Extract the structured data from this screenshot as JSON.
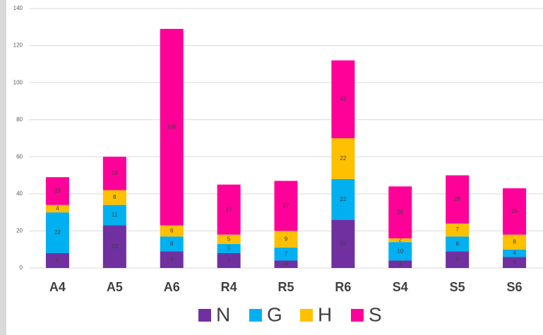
{
  "chart_data": {
    "type": "stacked_bar",
    "categories": [
      "A4",
      "A5",
      "A6",
      "R4",
      "R5",
      "R6",
      "S4",
      "S5",
      "S6"
    ],
    "series": [
      {
        "name": "N",
        "color": "#7030a0",
        "values": [
          8,
          23,
          9,
          8,
          4,
          26,
          4,
          9,
          6
        ]
      },
      {
        "name": "G",
        "color": "#00b0f0",
        "values": [
          22,
          11,
          8,
          5,
          7,
          22,
          10,
          8,
          4
        ]
      },
      {
        "name": "H",
        "color": "#ffc000",
        "values": [
          4,
          8,
          6,
          5,
          9,
          22,
          2,
          7,
          8
        ]
      },
      {
        "name": "S",
        "color": "#ff0099",
        "values": [
          15,
          18,
          106,
          27,
          27,
          42,
          28,
          26,
          25
        ]
      }
    ],
    "ylim": [
      0,
      140
    ],
    "yticks": [
      0,
      20,
      40,
      60,
      80,
      100,
      120,
      140
    ],
    "grid": true,
    "legend": "bottom"
  }
}
